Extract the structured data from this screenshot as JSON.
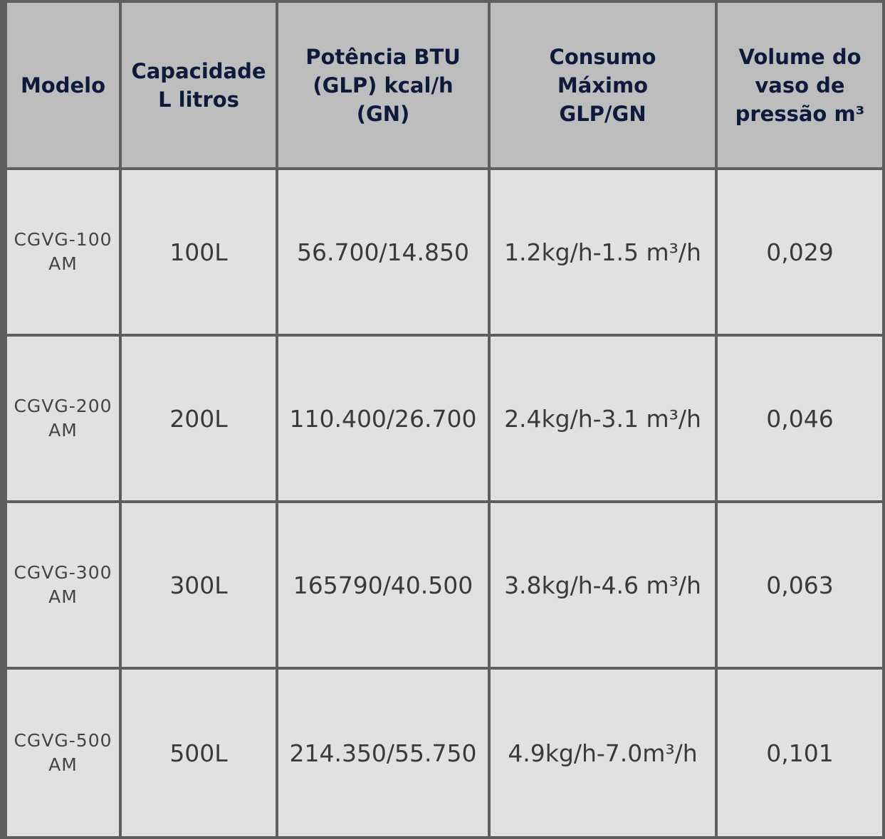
{
  "table": {
    "headers": [
      "Modelo",
      "Capacidade\nL litros",
      "Potência BTU\n(GLP) kcal/h\n(GN)",
      "Consumo\nMáximo\nGLP/GN",
      "Volume do\nvaso de\npressão m³"
    ],
    "rows": [
      {
        "modelo": "CGVG-100\nAM",
        "capacidade": "100L",
        "potencia": "56.700/14.850",
        "consumo": "1.2kg/h-1.5 m³/h",
        "volume": "0,029"
      },
      {
        "modelo": "CGVG-200\nAM",
        "capacidade": "200L",
        "potencia": "110.400/26.700",
        "consumo": "2.4kg/h-3.1 m³/h",
        "volume": "0,046"
      },
      {
        "modelo": "CGVG-300\nAM",
        "capacidade": "300L",
        "potencia": "165790/40.500",
        "consumo": "3.8kg/h-4.6 m³/h",
        "volume": "0,063"
      },
      {
        "modelo": "CGVG-500\nAM",
        "capacidade": "500L",
        "potencia": "214.350/55.750",
        "consumo": "4.9kg/h-7.0m³/h",
        "volume": "0,101"
      }
    ]
  },
  "colors": {
    "header_bg": "#bdbdbd",
    "body_bg": "#e1e1e1",
    "border": "#5f5f5f",
    "header_text": "#0e1a3c",
    "body_text": "#3a3a3a"
  }
}
